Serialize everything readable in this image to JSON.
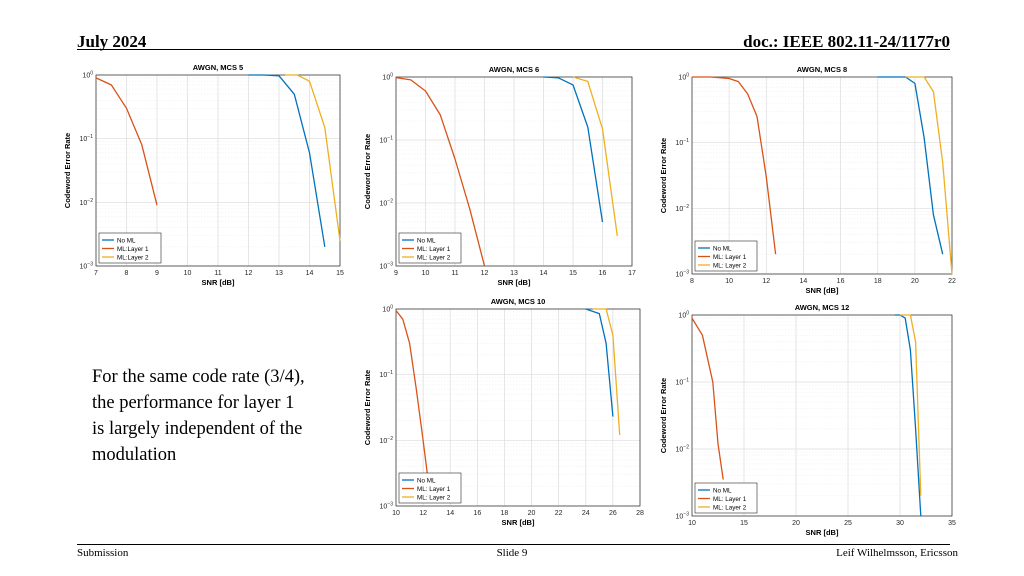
{
  "header": {
    "date": "July 2024",
    "doc": "doc.: IEEE 802.11-24/1177r0"
  },
  "footer": {
    "left": "Submission",
    "center": "Slide 9",
    "right": "Leif Wilhelmsson, Ericsson"
  },
  "body_text": "For the same code rate (3/4),\nthe performance for layer 1\nis largely independent of the\nmodulation",
  "colors": {
    "no_ml": "#0072BD",
    "layer1": "#D95319",
    "layer2": "#EDB120",
    "grid": "#e3e3e3",
    "axis": "#262626"
  },
  "chart_data": [
    {
      "type": "line",
      "title": "AWGN, MCS 5",
      "xlabel": "SNR [dB]",
      "ylabel": "Codeword Error Rate",
      "xlim": [
        7,
        15
      ],
      "ylim": [
        0.001,
        1
      ],
      "yscale": "log",
      "grid": true,
      "legend_position": "bottom-left",
      "xticks": [
        "7",
        "8",
        "9",
        "10",
        "11",
        "12",
        "13",
        "14",
        "15"
      ],
      "series": [
        {
          "name": "No ML",
          "x": [
            12,
            12.5,
            13,
            13.5,
            14,
            14.5
          ],
          "y": [
            1,
            1,
            0.97,
            0.5,
            0.06,
            0.002
          ]
        },
        {
          "name": "ML:Layer 1",
          "x": [
            7,
            7.5,
            8,
            8.5,
            9
          ],
          "y": [
            0.9,
            0.7,
            0.3,
            0.08,
            0.009
          ]
        },
        {
          "name": "ML:Layer 2",
          "x": [
            13.2,
            13.6,
            14,
            14.5,
            15
          ],
          "y": [
            1,
            1,
            0.8,
            0.15,
            0.0025
          ]
        }
      ]
    },
    {
      "type": "line",
      "title": "AWGN, MCS 6",
      "xlabel": "SNR [dB]",
      "ylabel": "Codeword Error Rate",
      "xlim": [
        9,
        17
      ],
      "ylim": [
        0.001,
        1
      ],
      "yscale": "log",
      "grid": true,
      "legend_position": "bottom-left",
      "xticks": [
        "9",
        "10",
        "11",
        "12",
        "13",
        "14",
        "15",
        "16",
        "17"
      ],
      "series": [
        {
          "name": "No ML",
          "x": [
            14,
            14.5,
            15,
            15.5,
            16
          ],
          "y": [
            1,
            0.97,
            0.75,
            0.16,
            0.005
          ]
        },
        {
          "name": "ML: Layer 1",
          "x": [
            9,
            9.5,
            10,
            10.5,
            11,
            11.5,
            12
          ],
          "y": [
            0.98,
            0.9,
            0.6,
            0.25,
            0.05,
            0.008,
            0.001
          ]
        },
        {
          "name": "ML: Layer 2",
          "x": [
            15,
            15.5,
            16,
            16.5
          ],
          "y": [
            1,
            0.85,
            0.15,
            0.003
          ]
        }
      ]
    },
    {
      "type": "line",
      "title": "AWGN, MCS 8",
      "xlabel": "SNR [dB]",
      "ylabel": "Codeword Error Rate",
      "xlim": [
        8,
        22
      ],
      "ylim": [
        0.001,
        1
      ],
      "yscale": "log",
      "grid": true,
      "legend_position": "bottom-left",
      "xticks": [
        "8",
        "10",
        "12",
        "14",
        "16",
        "18",
        "20",
        "22"
      ],
      "series": [
        {
          "name": "No ML",
          "x": [
            18,
            19.5,
            20,
            20.5,
            21,
            21.5
          ],
          "y": [
            1,
            1,
            0.8,
            0.12,
            0.008,
            0.002
          ]
        },
        {
          "name": "ML: Layer 1",
          "x": [
            8,
            9,
            10,
            10.5,
            11,
            11.5,
            12,
            12.5
          ],
          "y": [
            1,
            1,
            0.95,
            0.85,
            0.55,
            0.25,
            0.03,
            0.002
          ]
        },
        {
          "name": "ML: Layer 2",
          "x": [
            19.5,
            20.5,
            21,
            21.5,
            22
          ],
          "y": [
            1,
            1,
            0.6,
            0.05,
            0.001
          ]
        }
      ]
    },
    {
      "type": "line",
      "title": "AWGN, MCS 10",
      "xlabel": "SNR [dB]",
      "ylabel": "Codeword Error Rate",
      "xlim": [
        10,
        28
      ],
      "ylim": [
        0.001,
        1
      ],
      "yscale": "log",
      "grid": true,
      "legend_position": "bottom-left",
      "xticks": [
        "10",
        "12",
        "14",
        "16",
        "18",
        "20",
        "22",
        "24",
        "26",
        "28"
      ],
      "series": [
        {
          "name": "No ML",
          "x": [
            24,
            25,
            25.5,
            26
          ],
          "y": [
            1,
            0.85,
            0.3,
            0.023
          ]
        },
        {
          "name": "ML: Layer 1",
          "x": [
            10,
            10.5,
            11,
            11.5,
            12,
            12.5
          ],
          "y": [
            0.95,
            0.7,
            0.3,
            0.06,
            0.01,
            0.0015
          ]
        },
        {
          "name": "ML: Layer 2",
          "x": [
            24.5,
            25.5,
            26,
            26.5
          ],
          "y": [
            1,
            1,
            0.4,
            0.012
          ]
        }
      ]
    },
    {
      "type": "line",
      "title": "AWGN, MCS 12",
      "xlabel": "SNR [dB]",
      "ylabel": "Codeword Error Rate",
      "xlim": [
        10,
        35
      ],
      "ylim": [
        0.001,
        1
      ],
      "yscale": "log",
      "grid": true,
      "legend_position": "bottom-left",
      "xticks": [
        "10",
        "15",
        "20",
        "25",
        "30",
        "35"
      ],
      "series": [
        {
          "name": "No ML",
          "x": [
            29.5,
            30,
            30.5,
            31,
            31.5,
            32
          ],
          "y": [
            1,
            1,
            0.9,
            0.3,
            0.02,
            0.001
          ]
        },
        {
          "name": "ML: Layer 1",
          "x": [
            10,
            11,
            12,
            12.5,
            13
          ],
          "y": [
            0.9,
            0.5,
            0.1,
            0.012,
            0.0035
          ]
        },
        {
          "name": "ML: Layer 2",
          "x": [
            30,
            31,
            31.5,
            32
          ],
          "y": [
            1,
            1,
            0.4,
            0.002
          ]
        }
      ]
    }
  ]
}
